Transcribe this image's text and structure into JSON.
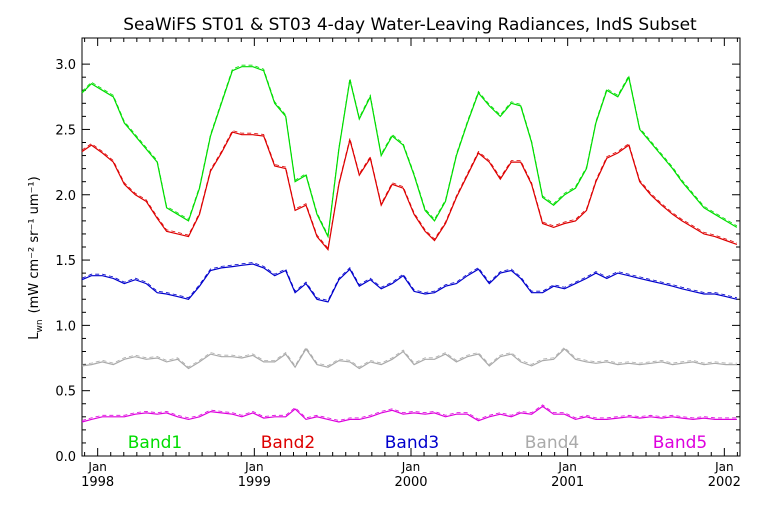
{
  "chart_data": {
    "type": "line",
    "title": "SeaWiFS ST01 & ST03 4-day Water-Leaving Radiances, IndS Subset",
    "ylabel_main": "L",
    "ylabel_sub": "wn",
    "ylabel_units": "(mW cm⁻² sr⁻¹ um⁻¹)",
    "xlim": [
      1997.9,
      2002.1
    ],
    "ylim": [
      0,
      3.2
    ],
    "yticks": [
      {
        "value": 0.0,
        "label": "0.0"
      },
      {
        "value": 0.5,
        "label": "0.5"
      },
      {
        "value": 1.0,
        "label": "1.0"
      },
      {
        "value": 1.5,
        "label": "1.5"
      },
      {
        "value": 2.0,
        "label": "2.0"
      },
      {
        "value": 2.5,
        "label": "2.5"
      },
      {
        "value": 3.0,
        "label": "3.0"
      }
    ],
    "xticks": [
      {
        "value": 1998,
        "month": "Jan",
        "year": "1998"
      },
      {
        "value": 1999,
        "month": "Jan",
        "year": "1999"
      },
      {
        "value": 2000,
        "month": "Jan",
        "year": "2000"
      },
      {
        "value": 2001,
        "month": "Jan",
        "year": "2001"
      },
      {
        "value": 2002,
        "month": "Jan",
        "year": "2002"
      }
    ],
    "x": [
      1997.9,
      1997.96,
      1998.03,
      1998.1,
      1998.17,
      1998.24,
      1998.31,
      1998.38,
      1998.44,
      1998.51,
      1998.58,
      1998.65,
      1998.72,
      1998.79,
      1998.86,
      1998.92,
      1998.99,
      1999.06,
      1999.13,
      1999.2,
      1999.26,
      1999.33,
      1999.4,
      1999.47,
      1999.54,
      1999.61,
      1999.67,
      1999.74,
      1999.81,
      1999.88,
      1999.95,
      2000.02,
      2000.09,
      2000.15,
      2000.22,
      2000.29,
      2000.36,
      2000.43,
      2000.5,
      2000.57,
      2000.64,
      2000.7,
      2000.77,
      2000.84,
      2000.91,
      2000.98,
      2001.05,
      2001.12,
      2001.18,
      2001.25,
      2001.32,
      2001.39,
      2001.46,
      2001.53,
      2001.6,
      2001.67,
      2001.73,
      2001.8,
      2001.87,
      2001.94,
      2002.01,
      2002.08
    ],
    "series": [
      {
        "name": "Band1",
        "color": "#00dd00",
        "values": [
          2.78,
          2.85,
          2.8,
          2.75,
          2.55,
          2.45,
          2.35,
          2.25,
          1.9,
          1.85,
          1.8,
          2.05,
          2.45,
          2.7,
          2.95,
          2.98,
          2.98,
          2.95,
          2.7,
          2.6,
          2.1,
          2.15,
          1.85,
          1.68,
          2.35,
          2.88,
          2.58,
          2.75,
          2.3,
          2.45,
          2.38,
          2.15,
          1.88,
          1.8,
          1.95,
          2.3,
          2.55,
          2.78,
          2.68,
          2.6,
          2.7,
          2.68,
          2.4,
          1.98,
          1.92,
          2.0,
          2.05,
          2.2,
          2.55,
          2.8,
          2.75,
          2.9,
          2.5,
          2.4,
          2.3,
          2.2,
          2.1,
          2.0,
          1.9,
          1.85,
          1.8,
          1.75
        ]
      },
      {
        "name": "Band2",
        "color": "#dd0000",
        "values": [
          2.33,
          2.38,
          2.32,
          2.25,
          2.08,
          2.0,
          1.95,
          1.82,
          1.72,
          1.7,
          1.68,
          1.85,
          2.18,
          2.32,
          2.48,
          2.46,
          2.46,
          2.45,
          2.22,
          2.2,
          1.88,
          1.92,
          1.68,
          1.58,
          2.08,
          2.42,
          2.15,
          2.28,
          1.92,
          2.08,
          2.05,
          1.85,
          1.72,
          1.65,
          1.78,
          1.98,
          2.15,
          2.32,
          2.25,
          2.12,
          2.25,
          2.25,
          2.08,
          1.78,
          1.75,
          1.78,
          1.8,
          1.88,
          2.1,
          2.28,
          2.32,
          2.38,
          2.1,
          2.0,
          1.92,
          1.85,
          1.8,
          1.75,
          1.7,
          1.68,
          1.65,
          1.62
        ]
      },
      {
        "name": "Band3",
        "color": "#0000cc",
        "values": [
          1.35,
          1.38,
          1.38,
          1.36,
          1.32,
          1.35,
          1.32,
          1.25,
          1.24,
          1.22,
          1.2,
          1.3,
          1.42,
          1.44,
          1.45,
          1.46,
          1.47,
          1.44,
          1.38,
          1.42,
          1.25,
          1.32,
          1.2,
          1.18,
          1.35,
          1.43,
          1.3,
          1.35,
          1.28,
          1.32,
          1.38,
          1.26,
          1.24,
          1.25,
          1.3,
          1.32,
          1.38,
          1.43,
          1.32,
          1.4,
          1.42,
          1.36,
          1.25,
          1.25,
          1.3,
          1.28,
          1.32,
          1.36,
          1.4,
          1.36,
          1.4,
          1.38,
          1.36,
          1.34,
          1.32,
          1.3,
          1.28,
          1.26,
          1.24,
          1.24,
          1.22,
          1.2
        ]
      },
      {
        "name": "Band4",
        "color": "#aaaaaa",
        "values": [
          0.69,
          0.7,
          0.72,
          0.7,
          0.74,
          0.76,
          0.74,
          0.75,
          0.72,
          0.74,
          0.67,
          0.72,
          0.78,
          0.76,
          0.76,
          0.75,
          0.77,
          0.72,
          0.72,
          0.78,
          0.68,
          0.82,
          0.7,
          0.68,
          0.73,
          0.72,
          0.67,
          0.72,
          0.7,
          0.74,
          0.8,
          0.7,
          0.74,
          0.74,
          0.78,
          0.72,
          0.76,
          0.78,
          0.69,
          0.76,
          0.78,
          0.72,
          0.69,
          0.73,
          0.74,
          0.82,
          0.74,
          0.72,
          0.71,
          0.72,
          0.7,
          0.71,
          0.7,
          0.71,
          0.72,
          0.7,
          0.71,
          0.72,
          0.7,
          0.71,
          0.7,
          0.7
        ]
      },
      {
        "name": "Band5",
        "color": "#dd00dd",
        "values": [
          0.26,
          0.28,
          0.3,
          0.3,
          0.3,
          0.32,
          0.33,
          0.32,
          0.33,
          0.3,
          0.28,
          0.3,
          0.34,
          0.33,
          0.32,
          0.3,
          0.33,
          0.29,
          0.3,
          0.3,
          0.36,
          0.28,
          0.3,
          0.28,
          0.26,
          0.28,
          0.28,
          0.3,
          0.33,
          0.35,
          0.32,
          0.33,
          0.32,
          0.33,
          0.3,
          0.32,
          0.32,
          0.27,
          0.3,
          0.32,
          0.3,
          0.33,
          0.32,
          0.38,
          0.32,
          0.32,
          0.28,
          0.3,
          0.28,
          0.28,
          0.29,
          0.3,
          0.29,
          0.3,
          0.29,
          0.3,
          0.29,
          0.28,
          0.29,
          0.28,
          0.28,
          0.28
        ]
      }
    ],
    "legend_placement": "bottom",
    "grid": false
  }
}
